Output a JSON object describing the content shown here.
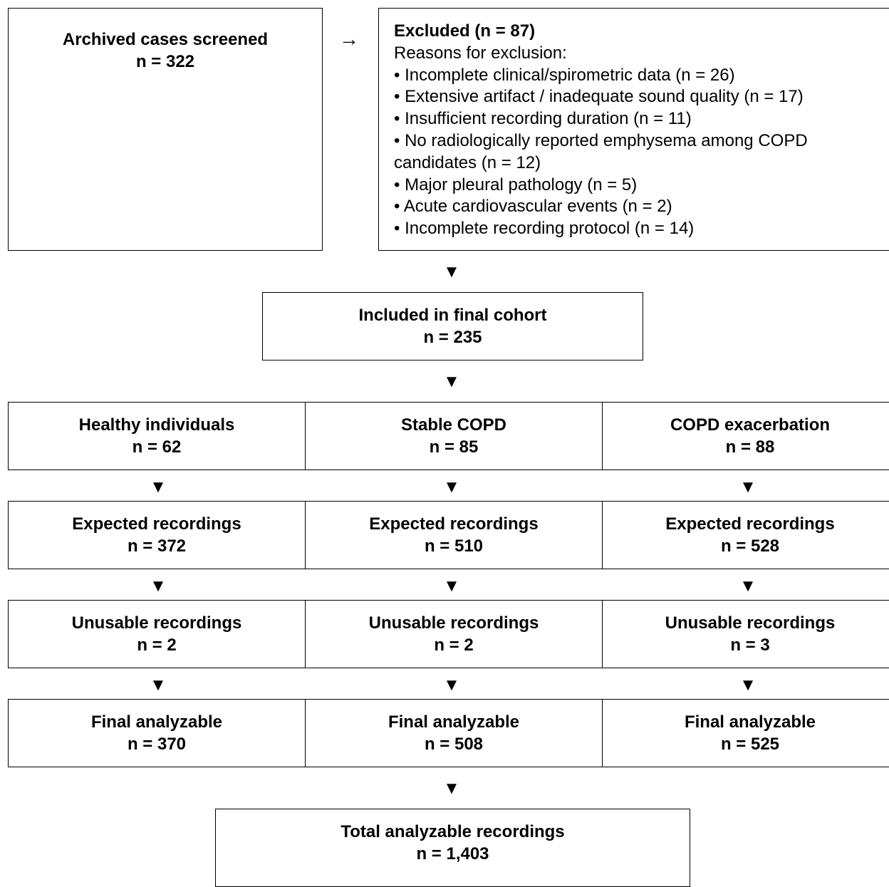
{
  "screened": {
    "title": "Archived cases screened",
    "count": "n = 322"
  },
  "arrow_right": "→",
  "arrow_down": "▼",
  "excluded": {
    "title": "Excluded (n = 87)",
    "subtitle": "Reasons for exclusion:",
    "reasons": [
      "• Incomplete clinical/spirometric data (n = 26)",
      "• Extensive artifact / inadequate sound quality (n = 17)",
      "• Insufficient recording duration (n = 11)",
      "• No radiologically reported emphysema among COPD candidates (n = 12)",
      "• Major pleural pathology (n = 5)",
      "• Acute cardiovascular events (n = 2)",
      "• Incomplete recording protocol (n = 14)"
    ]
  },
  "cohort": {
    "title": "Included in final cohort",
    "count": "n = 235"
  },
  "groups": [
    {
      "title": "Healthy individuals",
      "count": "n = 62"
    },
    {
      "title": "Stable COPD",
      "count": "n = 85"
    },
    {
      "title": "COPD exacerbation",
      "count": "n = 88"
    }
  ],
  "expected": [
    {
      "title": "Expected recordings",
      "count": "n = 372"
    },
    {
      "title": "Expected recordings",
      "count": "n = 510"
    },
    {
      "title": "Expected recordings",
      "count": "n = 528"
    }
  ],
  "unusable": [
    {
      "title": "Unusable recordings",
      "count": "n = 2"
    },
    {
      "title": "Unusable recordings",
      "count": "n = 2"
    },
    {
      "title": "Unusable recordings",
      "count": "n = 3"
    }
  ],
  "final": [
    {
      "title": "Final analyzable",
      "count": "n = 370"
    },
    {
      "title": "Final analyzable",
      "count": "n = 508"
    },
    {
      "title": "Final analyzable",
      "count": "n = 525"
    }
  ],
  "total": {
    "title": "Total analyzable recordings",
    "count": "n = 1,403"
  }
}
